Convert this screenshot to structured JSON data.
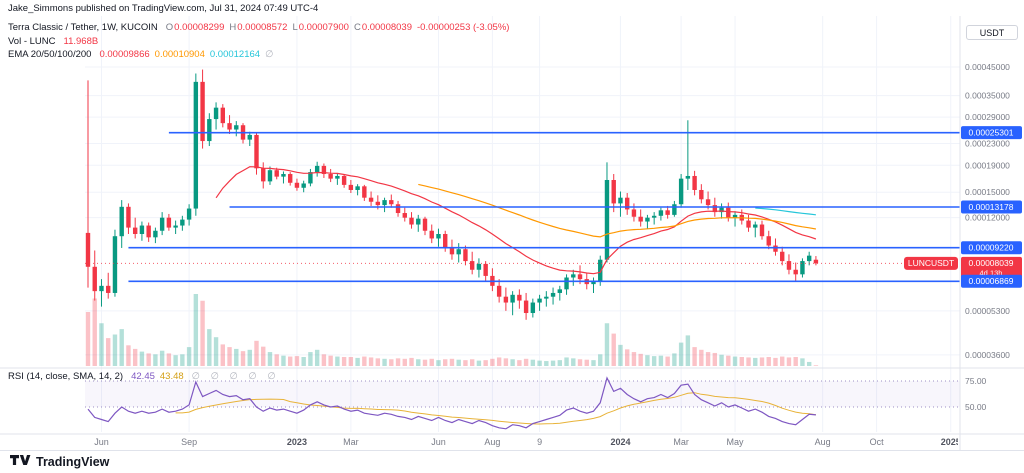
{
  "topbar": {
    "publish_info": "Jake_Simmons published on TradingView.com, Jul 31, 2024 07:49 UTC-4"
  },
  "legend": {
    "symbol_line": "Terra Classic / Tether, 1W, KUCOIN",
    "ohlc": {
      "o_label": "O",
      "o": "0.00008299",
      "h_label": "H",
      "h": "0.00008572",
      "l_label": "L",
      "l": "0.00007900",
      "c_label": "C",
      "c": "0.00008039",
      "change": "-0.00000253 (-3.05%)"
    },
    "volume_row": {
      "label": "Vol - LUNC",
      "value": "11.968B"
    },
    "ema_row": {
      "label": "EMA 20/50/100/200",
      "v20": "0.00009866",
      "v50": "0.00010904",
      "v100": "0.00012164",
      "v200": "∅"
    }
  },
  "rsi_legend": {
    "label": "RSI (14, close, SMA, 14, 2)",
    "rsi_value": "42.45",
    "sma_value": "43.48",
    "empties": "∅ ∅ ∅ ∅ ∅"
  },
  "axis": {
    "currency": "USDT",
    "rsi_ticks": [
      "75.00",
      "50.00"
    ]
  },
  "footer": {
    "brand": "TradingView"
  },
  "colors": {
    "up": "#089981",
    "down": "#f23645",
    "accent_blue": "#2962ff",
    "grid": "#f0f3fa",
    "axis_line": "#e0e3eb",
    "rsi_purple": "#7e57c2",
    "rsi_sma_yellow": "#e8b339",
    "badge_text": "#ffffff"
  },
  "chart_data": [
    {
      "type": "candlestick",
      "symbol": "LUNCUSDT",
      "title": "Terra Classic / Tether, 1W, KUCOIN",
      "exchange": "KUCOIN",
      "interval": "1W",
      "scale": "log",
      "unit": 1e-05,
      "ylim": [
        3.3e-05,
        0.00065
      ],
      "y_ticks": [
        "0.00045000",
        "0.00035000",
        "0.00029000",
        "0.00023000",
        "0.00019000",
        "0.00015000",
        "0.00012000",
        "0.00005300",
        "0.00003600"
      ],
      "x_ticks": [
        {
          "label": "Jun",
          "i": 2
        },
        {
          "label": "Sep",
          "i": 15
        },
        {
          "label": "2023",
          "i": 31
        },
        {
          "label": "Mar",
          "i": 39
        },
        {
          "label": "Jun",
          "i": 52
        },
        {
          "label": "Aug",
          "i": 60
        },
        {
          "label": "9",
          "i": 67
        },
        {
          "label": "2024",
          "i": 79
        },
        {
          "label": "Mar",
          "i": 88
        },
        {
          "label": "May",
          "i": 96
        },
        {
          "label": "Aug",
          "i": 109
        },
        {
          "label": "Oct",
          "i": 117
        },
        {
          "label": "2025",
          "i": 128
        }
      ],
      "ohlc": [
        [
          10.5,
          40,
          6.5,
          7.8
        ],
        [
          7.8,
          9,
          5.8,
          6.3
        ],
        [
          6.3,
          7,
          5.5,
          6.6
        ],
        [
          6.6,
          7.4,
          5.9,
          6.2
        ],
        [
          6.2,
          10.8,
          6,
          10.2
        ],
        [
          10.2,
          14,
          9.2,
          13.2
        ],
        [
          13.2,
          13.6,
          10.4,
          11
        ],
        [
          11,
          12,
          10,
          10.4
        ],
        [
          10.4,
          11.6,
          9.8,
          11.2
        ],
        [
          11.2,
          11.5,
          9.7,
          10.1
        ],
        [
          10.1,
          11,
          9.6,
          10.7
        ],
        [
          10.7,
          12.6,
          10.3,
          12
        ],
        [
          12,
          12.4,
          10.7,
          11
        ],
        [
          11,
          11.7,
          10.4,
          11.2
        ],
        [
          11.2,
          12.2,
          10.7,
          11.8
        ],
        [
          11.8,
          13.5,
          11.2,
          13
        ],
        [
          13,
          42.5,
          12.2,
          39.5
        ],
        [
          39.5,
          44,
          22,
          23.5
        ],
        [
          23.5,
          30,
          22.5,
          28.5
        ],
        [
          28.5,
          33,
          26,
          31.5
        ],
        [
          31.5,
          32.5,
          26.5,
          27.5
        ],
        [
          27.5,
          29.5,
          25,
          26
        ],
        [
          26,
          28,
          24.5,
          27
        ],
        [
          27,
          27.5,
          23,
          23.8
        ],
        [
          23.8,
          25.5,
          22.5,
          24.8
        ],
        [
          24.8,
          25.4,
          17.5,
          18.5
        ],
        [
          18.5,
          19.5,
          15.5,
          16.5
        ],
        [
          16.5,
          18.8,
          16,
          18.2
        ],
        [
          18.2,
          18.6,
          16.8,
          17.2
        ],
        [
          17.2,
          18,
          16.2,
          17.6
        ],
        [
          17.6,
          17.9,
          15.9,
          16.3
        ],
        [
          16.3,
          16.9,
          15.2,
          15.6
        ],
        [
          15.6,
          16.6,
          15,
          16.2
        ],
        [
          16.2,
          18.4,
          15.8,
          17.9
        ],
        [
          17.9,
          19.6,
          17.2,
          18.9
        ],
        [
          18.9,
          19.3,
          17,
          17.6
        ],
        [
          17.6,
          18.4,
          16.4,
          16.9
        ],
        [
          16.9,
          17.7,
          16,
          17.3
        ],
        [
          17.3,
          17.6,
          15.6,
          16
        ],
        [
          16,
          16.7,
          14.9,
          15.3
        ],
        [
          15.3,
          16.1,
          14.6,
          15.8
        ],
        [
          15.8,
          16,
          13.9,
          14.3
        ],
        [
          14.3,
          15.1,
          13.3,
          13.8
        ],
        [
          13.8,
          14.6,
          12.9,
          13.4
        ],
        [
          13.4,
          14.3,
          12.6,
          14
        ],
        [
          14,
          14.7,
          13.1,
          13.5
        ],
        [
          13.5,
          13.9,
          12.1,
          12.5
        ],
        [
          12.5,
          13.1,
          11.6,
          12
        ],
        [
          12,
          12.6,
          10.9,
          11.3
        ],
        [
          11.3,
          12.3,
          10.6,
          11.9
        ],
        [
          11.9,
          12.1,
          10.3,
          10.7
        ],
        [
          10.7,
          11.3,
          9.6,
          10
        ],
        [
          10,
          10.9,
          9.3,
          10.4
        ],
        [
          10.4,
          10.7,
          8.9,
          9.2
        ],
        [
          9.2,
          9.9,
          8.3,
          8.7
        ],
        [
          8.7,
          9.6,
          8.1,
          9.1
        ],
        [
          9.1,
          9.4,
          7.9,
          8.2
        ],
        [
          8.2,
          8.9,
          7.3,
          7.6
        ],
        [
          7.6,
          8.4,
          7.1,
          8
        ],
        [
          8,
          8.2,
          6.9,
          7.2
        ],
        [
          7.2,
          7.7,
          6.3,
          6.6
        ],
        [
          6.6,
          7,
          5.7,
          6
        ],
        [
          6,
          6.5,
          5.3,
          5.7
        ],
        [
          5.7,
          6.3,
          5.1,
          6.1
        ],
        [
          6.1,
          6.4,
          5.4,
          5.8
        ],
        [
          5.8,
          6.2,
          4.9,
          5.2
        ],
        [
          5.2,
          5.9,
          5,
          5.7
        ],
        [
          5.7,
          6.1,
          5.3,
          5.9
        ],
        [
          5.9,
          6.3,
          5.5,
          6
        ],
        [
          6,
          6.5,
          5.6,
          6.2
        ],
        [
          6.2,
          6.6,
          5.8,
          6.4
        ],
        [
          6.4,
          7.3,
          6.1,
          7.1
        ],
        [
          7.1,
          7.6,
          6.6,
          7.3
        ],
        [
          7.3,
          7.9,
          6.7,
          7
        ],
        [
          7,
          7.4,
          6.4,
          6.7
        ],
        [
          6.7,
          7.1,
          6.2,
          6.9
        ],
        [
          6.9,
          8.6,
          6.6,
          8.3
        ],
        [
          8.3,
          19.5,
          8.1,
          16.7
        ],
        [
          16.7,
          17.6,
          12.6,
          13.6
        ],
        [
          13.6,
          15.1,
          12.1,
          14.3
        ],
        [
          14.3,
          14.9,
          12.3,
          12.9
        ],
        [
          12.9,
          13.6,
          11.6,
          12.1
        ],
        [
          12.1,
          12.9,
          11.1,
          11.6
        ],
        [
          11.6,
          12.3,
          10.9,
          12
        ],
        [
          12,
          12.6,
          11.3,
          12.2
        ],
        [
          12.2,
          13.1,
          11.7,
          12.8
        ],
        [
          12.8,
          13.3,
          11.9,
          12.3
        ],
        [
          12.3,
          13.9,
          12.1,
          13.5
        ],
        [
          13.5,
          17.6,
          13.1,
          16.9
        ],
        [
          16.9,
          28.2,
          15.3,
          17.3
        ],
        [
          17.3,
          18.1,
          14.6,
          15.3
        ],
        [
          15.3,
          16.1,
          13.6,
          14.1
        ],
        [
          14.1,
          15.1,
          12.9,
          13.4
        ],
        [
          13.4,
          14.3,
          12.1,
          12.6
        ],
        [
          12.6,
          13.6,
          11.9,
          13.1
        ],
        [
          13.1,
          13.7,
          11.6,
          12
        ],
        [
          12,
          12.7,
          11.1,
          12.3
        ],
        [
          12.3,
          12.9,
          11.3,
          11.7
        ],
        [
          11.7,
          12.3,
          10.6,
          11
        ],
        [
          11,
          11.6,
          10.1,
          11.3
        ],
        [
          11.3,
          11.7,
          9.9,
          10.2
        ],
        [
          10.2,
          10.7,
          9.1,
          9.4
        ],
        [
          9.4,
          10,
          8.6,
          8.9
        ],
        [
          8.9,
          9.3,
          7.9,
          8.2
        ],
        [
          8.2,
          8.7,
          7.3,
          7.6
        ],
        [
          7.6,
          8.1,
          6.87,
          7.3
        ],
        [
          7.3,
          8.4,
          7.1,
          8.2
        ],
        [
          8.2,
          8.9,
          7.9,
          8.6
        ],
        [
          8.299,
          8.572,
          7.9,
          8.039
        ]
      ],
      "volume": [
        1200,
        1500,
        950,
        620,
        700,
        820,
        460,
        380,
        320,
        280,
        260,
        340,
        280,
        240,
        260,
        420,
        1600,
        1450,
        820,
        640,
        480,
        420,
        380,
        330,
        360,
        560,
        430,
        310,
        260,
        230,
        210,
        220,
        200,
        310,
        360,
        260,
        230,
        210,
        200,
        200,
        180,
        210,
        190,
        170,
        160,
        150,
        170,
        160,
        180,
        150,
        140,
        160,
        130,
        150,
        160,
        140,
        130,
        150,
        120,
        130,
        160,
        190,
        170,
        150,
        130,
        160,
        140,
        120,
        110,
        120,
        130,
        190,
        170,
        150,
        140,
        130,
        260,
        950,
        720,
        470,
        370,
        310,
        270,
        240,
        220,
        230,
        210,
        280,
        520,
        680,
        420,
        360,
        310,
        290,
        250,
        230,
        210,
        200,
        190,
        180,
        190,
        200,
        180,
        210,
        190,
        200,
        170,
        90,
        12
      ],
      "volume_unit": "B",
      "last_volume_label": "11.968B",
      "ema_periods": [
        20,
        50,
        100,
        200
      ],
      "ema_colors": {
        "20": "#f23645",
        "50": "#ff9800",
        "100": "#26c6da"
      },
      "ema_values": {
        "20": "0.00009866",
        "50": "0.00010904",
        "100": "0.00012164",
        "200": "∅"
      },
      "levels": [
        {
          "value": 0.00025301,
          "label": "0.00025301",
          "start_i": 12
        },
        {
          "value": 0.00013178,
          "label": "0.00013178",
          "start_i": 21
        },
        {
          "value": 9.22e-05,
          "label": "0.00009220",
          "start_i": 6
        },
        {
          "value": 6.869e-05,
          "label": "0.00006869",
          "start_i": 6
        }
      ],
      "last_price": {
        "value": 8.039e-05,
        "label": "0.00008039",
        "symbol": "LUNCUSDT",
        "countdown": "4d 13h",
        "direction": "down"
      }
    },
    {
      "type": "line",
      "name": "RSI",
      "params": "14, close, SMA, 14, 2",
      "values": [
        48,
        40,
        38,
        36,
        44,
        50,
        46,
        44,
        46,
        44,
        45,
        48,
        45,
        46,
        48,
        52,
        74,
        60,
        63,
        66,
        62,
        60,
        61,
        57,
        58,
        50,
        46,
        49,
        47,
        48,
        46,
        44,
        47,
        52,
        55,
        52,
        50,
        51,
        48,
        46,
        47,
        44,
        43,
        42,
        44,
        43,
        41,
        40,
        38,
        41,
        39,
        37,
        40,
        37,
        35,
        38,
        36,
        34,
        37,
        35,
        32,
        30,
        29,
        33,
        32,
        30,
        34,
        36,
        38,
        40,
        42,
        47,
        49,
        46,
        44,
        46,
        54,
        78,
        65,
        68,
        62,
        58,
        55,
        58,
        59,
        62,
        59,
        63,
        71,
        72,
        62,
        57,
        54,
        51,
        54,
        50,
        52,
        49,
        46,
        48,
        45,
        41,
        39,
        36,
        34,
        33,
        38,
        43,
        42.45
      ],
      "sma_period": 14,
      "levels": [
        75,
        50
      ],
      "y_ticks": [
        "75.00",
        "50.00"
      ],
      "current": 42.45,
      "sma_current": 43.48
    }
  ]
}
